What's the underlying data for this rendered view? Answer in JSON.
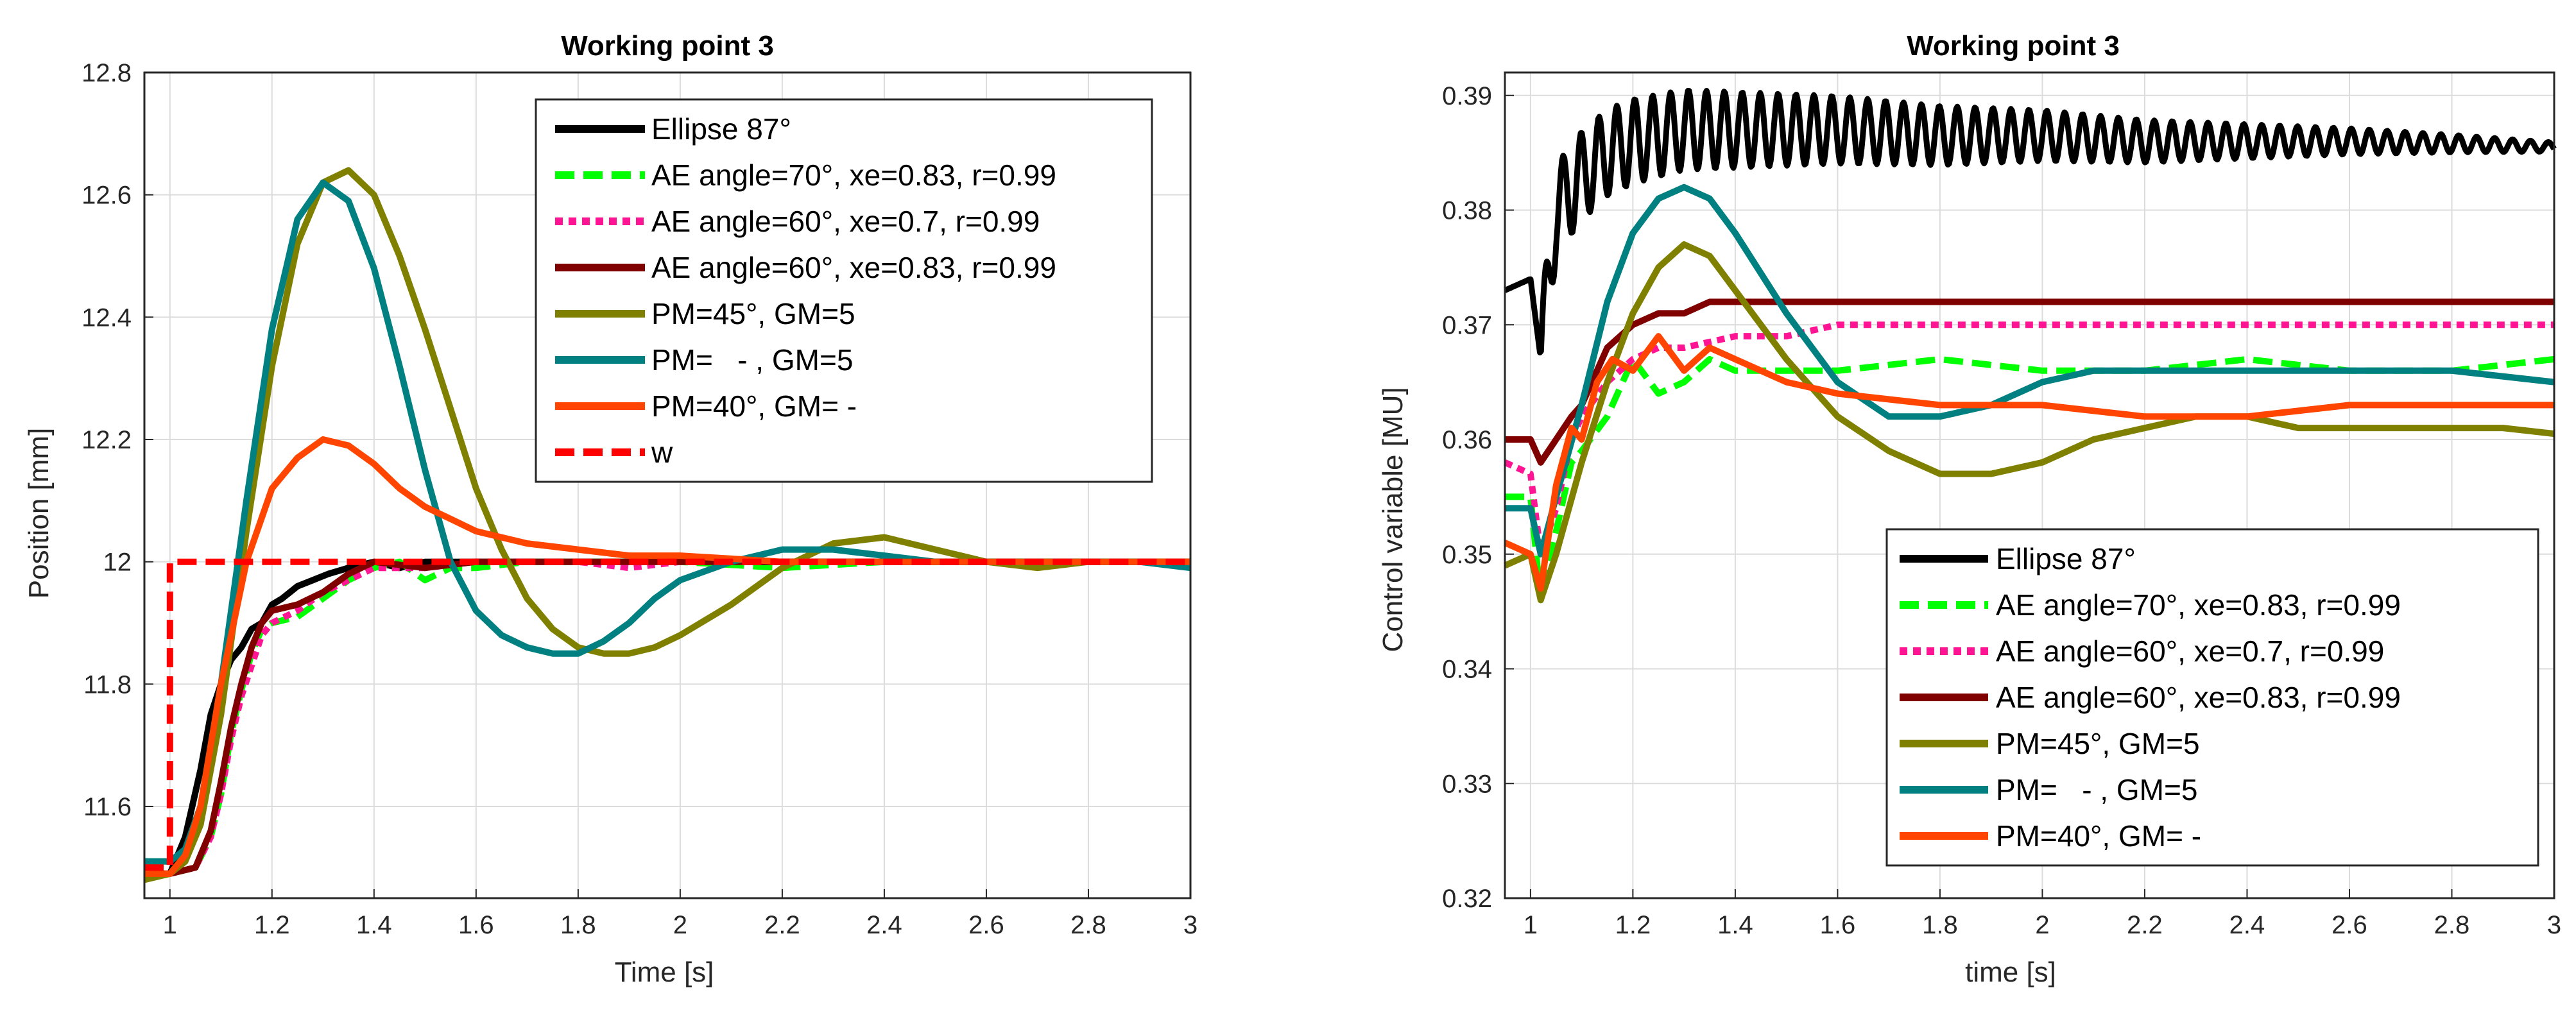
{
  "colors": {
    "ellipse": "#000000",
    "ae70": "#00ff00",
    "ae60_07": "#ff1493",
    "ae60_083": "#800000",
    "pm45": "#808000",
    "pmgm5": "#008080",
    "pm40": "#ff4500",
    "w": "#ff0000",
    "grid": "#dcdcdc",
    "axis": "#262626"
  },
  "chart_data": [
    {
      "type": "line",
      "title": "Working point 3",
      "xlabel": "Time [s]",
      "ylabel": "Position [mm]",
      "xlim": [
        0.95,
        3
      ],
      "ylim": [
        11.45,
        12.8
      ],
      "xticks": [
        1,
        1.2,
        1.4,
        1.6,
        1.8,
        2,
        2.2,
        2.4,
        2.6,
        2.8,
        3
      ],
      "xtick_labels": [
        "1",
        "1.2",
        "1.4",
        "1.6",
        "1.8",
        "2",
        "2.2",
        "2.4",
        "2.6",
        "2.8",
        "3"
      ],
      "yticks": [
        11.6,
        11.8,
        12,
        12.2,
        12.4,
        12.6,
        12.8
      ],
      "ytick_labels": [
        "11.6",
        "11.8",
        "12",
        "12.2",
        "12.4",
        "12.6",
        "12.8"
      ],
      "grid": true,
      "legend_location": "top-right",
      "series": [
        {
          "name": "Ellipse 87°",
          "color": "ellipse",
          "style": "solid",
          "x": [
            0.95,
            1.0,
            1.03,
            1.06,
            1.08,
            1.1,
            1.12,
            1.14,
            1.16,
            1.18,
            1.2,
            1.22,
            1.25,
            1.28,
            1.31,
            1.35,
            1.4,
            1.45,
            1.5,
            1.6,
            1.7,
            1.8,
            2.0,
            2.2,
            2.4,
            2.6,
            2.8,
            3.0
          ],
          "y": [
            11.49,
            11.49,
            11.55,
            11.66,
            11.75,
            11.8,
            11.84,
            11.86,
            11.89,
            11.9,
            11.93,
            11.94,
            11.96,
            11.97,
            11.98,
            11.99,
            12.0,
            11.99,
            12.0,
            12.0,
            12.0,
            12.0,
            12.0,
            12.0,
            12.0,
            12.0,
            12.0,
            12.0
          ]
        },
        {
          "name": "AE angle=70°, xe=0.83, r=0.99",
          "color": "ae70",
          "style": "dashed",
          "x": [
            0.95,
            1.0,
            1.05,
            1.08,
            1.1,
            1.12,
            1.14,
            1.16,
            1.18,
            1.2,
            1.25,
            1.3,
            1.35,
            1.4,
            1.45,
            1.5,
            1.55,
            1.6,
            1.7,
            1.8,
            1.9,
            2.0,
            2.2,
            2.4,
            2.6,
            2.8,
            3.0
          ],
          "y": [
            11.49,
            11.49,
            11.5,
            11.55,
            11.62,
            11.72,
            11.79,
            11.85,
            11.89,
            11.9,
            11.91,
            11.94,
            11.97,
            11.99,
            12.0,
            11.97,
            11.99,
            11.99,
            12.0,
            12.0,
            12.0,
            12.0,
            11.99,
            12.0,
            12.0,
            12.0,
            12.0
          ]
        },
        {
          "name": "AE angle=60°, xe=0.7, r=0.99",
          "color": "ae60_07",
          "style": "dotted",
          "x": [
            0.95,
            1.0,
            1.05,
            1.08,
            1.1,
            1.12,
            1.14,
            1.16,
            1.18,
            1.2,
            1.25,
            1.3,
            1.35,
            1.4,
            1.5,
            1.6,
            1.7,
            1.8,
            1.9,
            2.0,
            2.2,
            2.4,
            2.6,
            2.8,
            3.0
          ],
          "y": [
            11.49,
            11.49,
            11.5,
            11.55,
            11.62,
            11.71,
            11.78,
            11.83,
            11.88,
            11.9,
            11.92,
            11.95,
            11.97,
            11.99,
            11.99,
            12.0,
            12.0,
            12.0,
            11.99,
            12.0,
            12.0,
            12.0,
            12.0,
            12.0,
            12.0
          ]
        },
        {
          "name": "AE angle=60°, xe=0.83, r=0.99",
          "color": "ae60_083",
          "style": "solid",
          "x": [
            0.95,
            1.0,
            1.05,
            1.08,
            1.1,
            1.12,
            1.14,
            1.16,
            1.18,
            1.2,
            1.25,
            1.3,
            1.35,
            1.4,
            1.5,
            1.6,
            1.7,
            1.8,
            2.0,
            2.2,
            2.4,
            2.6,
            2.8,
            3.0
          ],
          "y": [
            11.49,
            11.49,
            11.5,
            11.56,
            11.64,
            11.73,
            11.8,
            11.86,
            11.9,
            11.92,
            11.93,
            11.95,
            11.98,
            12.0,
            11.99,
            12.0,
            12.0,
            12.0,
            12.0,
            12.0,
            12.0,
            12.0,
            12.0,
            12.0
          ]
        },
        {
          "name": "PM=45°, GM=5",
          "color": "pm45",
          "style": "solid",
          "x": [
            0.95,
            1.0,
            1.03,
            1.06,
            1.1,
            1.15,
            1.2,
            1.25,
            1.3,
            1.35,
            1.4,
            1.45,
            1.5,
            1.55,
            1.6,
            1.65,
            1.7,
            1.75,
            1.8,
            1.85,
            1.9,
            1.95,
            2.0,
            2.1,
            2.2,
            2.3,
            2.4,
            2.5,
            2.6,
            2.7,
            2.8,
            2.9,
            3.0
          ],
          "y": [
            11.48,
            11.49,
            11.51,
            11.57,
            11.75,
            12.05,
            12.32,
            12.52,
            12.62,
            12.64,
            12.6,
            12.5,
            12.38,
            12.25,
            12.12,
            12.02,
            11.94,
            11.89,
            11.86,
            11.85,
            11.85,
            11.86,
            11.88,
            11.93,
            11.99,
            12.03,
            12.04,
            12.02,
            12.0,
            11.99,
            12.0,
            12.0,
            12.0
          ]
        },
        {
          "name": "PM=   - , GM=5",
          "color": "pmgm5",
          "style": "solid",
          "x": [
            0.95,
            1.0,
            1.03,
            1.06,
            1.1,
            1.15,
            1.2,
            1.25,
            1.3,
            1.35,
            1.4,
            1.45,
            1.5,
            1.55,
            1.6,
            1.65,
            1.7,
            1.75,
            1.8,
            1.85,
            1.9,
            1.95,
            2.0,
            2.1,
            2.2,
            2.3,
            2.4,
            2.5,
            2.6,
            2.7,
            2.8,
            2.9,
            3.0
          ],
          "y": [
            11.51,
            11.51,
            11.53,
            11.6,
            11.8,
            12.1,
            12.38,
            12.56,
            12.62,
            12.59,
            12.48,
            12.32,
            12.15,
            12.0,
            11.92,
            11.88,
            11.86,
            11.85,
            11.85,
            11.87,
            11.9,
            11.94,
            11.97,
            12.0,
            12.02,
            12.02,
            12.01,
            12.0,
            12.0,
            12.0,
            12.0,
            12.0,
            11.99
          ]
        },
        {
          "name": "PM=40°, GM= -",
          "color": "pm40",
          "style": "solid",
          "x": [
            0.95,
            1.0,
            1.03,
            1.06,
            1.1,
            1.15,
            1.2,
            1.25,
            1.3,
            1.35,
            1.4,
            1.45,
            1.5,
            1.55,
            1.6,
            1.7,
            1.8,
            1.9,
            2.0,
            2.2,
            2.4,
            2.6,
            2.8,
            3.0
          ],
          "y": [
            11.49,
            11.49,
            11.52,
            11.6,
            11.8,
            12.0,
            12.12,
            12.17,
            12.2,
            12.19,
            12.16,
            12.12,
            12.09,
            12.07,
            12.05,
            12.03,
            12.02,
            12.01,
            12.01,
            12.0,
            12.0,
            12.0,
            12.0,
            12.0
          ]
        },
        {
          "name": "w",
          "color": "w",
          "style": "dashed",
          "x": [
            0.95,
            1.0,
            1.0,
            3.0
          ],
          "y": [
            11.5,
            11.5,
            12.0,
            12.0
          ]
        }
      ]
    },
    {
      "type": "line",
      "title": "Working point 3",
      "xlabel": "time [s]",
      "ylabel": "Control variable [MU]",
      "xlim": [
        0.95,
        3
      ],
      "ylim": [
        0.32,
        0.392
      ],
      "xticks": [
        1,
        1.2,
        1.4,
        1.6,
        1.8,
        2,
        2.2,
        2.4,
        2.6,
        2.8,
        3
      ],
      "xtick_labels": [
        "1",
        "1.2",
        "1.4",
        "1.6",
        "1.8",
        "2",
        "2.2",
        "2.4",
        "2.6",
        "2.8",
        "3"
      ],
      "yticks": [
        0.32,
        0.33,
        0.34,
        0.35,
        0.36,
        0.37,
        0.38,
        0.39
      ],
      "ytick_labels": [
        "0.32",
        "0.33",
        "0.34",
        "0.35",
        "0.36",
        "0.37",
        "0.38",
        "0.39"
      ],
      "grid": true,
      "legend_location": "bottom-right",
      "series": [
        {
          "name": "Ellipse 87°",
          "color": "ellipse",
          "style": "solid",
          "oscillation": {
            "start": 1.02,
            "period": 0.035,
            "amp_start": 0.004,
            "amp_end": 0.0004
          },
          "x": [
            0.95,
            1.0,
            1.02,
            1.05,
            1.1,
            1.15,
            1.2,
            1.3,
            1.4,
            1.5,
            1.6,
            1.8,
            2.0,
            2.2,
            2.4,
            2.6,
            2.8,
            3.0
          ],
          "y": [
            0.373,
            0.374,
            0.367,
            0.38,
            0.383,
            0.385,
            0.386,
            0.387,
            0.387,
            0.387,
            0.387,
            0.3865,
            0.3865,
            0.386,
            0.386,
            0.386,
            0.3858,
            0.3855
          ]
        },
        {
          "name": "AE angle=70°, xe=0.83, r=0.99",
          "color": "ae70",
          "style": "dashed",
          "x": [
            0.95,
            1.0,
            1.02,
            1.05,
            1.08,
            1.1,
            1.15,
            1.2,
            1.25,
            1.3,
            1.35,
            1.4,
            1.5,
            1.6,
            1.8,
            2.0,
            2.2,
            2.4,
            2.6,
            2.8,
            3.0
          ],
          "y": [
            0.355,
            0.355,
            0.346,
            0.352,
            0.358,
            0.359,
            0.362,
            0.367,
            0.364,
            0.365,
            0.367,
            0.366,
            0.366,
            0.366,
            0.367,
            0.366,
            0.366,
            0.367,
            0.366,
            0.366,
            0.367
          ]
        },
        {
          "name": "AE angle=60°, xe=0.7, r=0.99",
          "color": "ae60_07",
          "style": "dotted",
          "x": [
            0.95,
            1.0,
            1.02,
            1.05,
            1.08,
            1.1,
            1.15,
            1.2,
            1.25,
            1.3,
            1.4,
            1.5,
            1.6,
            1.8,
            2.0,
            2.2,
            2.4,
            2.6,
            2.8,
            3.0
          ],
          "y": [
            0.358,
            0.357,
            0.35,
            0.354,
            0.36,
            0.362,
            0.365,
            0.367,
            0.368,
            0.368,
            0.369,
            0.369,
            0.37,
            0.37,
            0.37,
            0.37,
            0.37,
            0.37,
            0.37,
            0.37
          ]
        },
        {
          "name": "AE angle=60°, xe=0.83, r=0.99",
          "color": "ae60_083",
          "style": "solid",
          "x": [
            0.95,
            1.0,
            1.02,
            1.05,
            1.08,
            1.1,
            1.15,
            1.2,
            1.25,
            1.3,
            1.35,
            1.4,
            1.5,
            1.6,
            1.8,
            2.0,
            2.2,
            2.4,
            2.6,
            2.8,
            3.0
          ],
          "y": [
            0.36,
            0.36,
            0.358,
            0.36,
            0.362,
            0.363,
            0.368,
            0.37,
            0.371,
            0.371,
            0.372,
            0.372,
            0.372,
            0.372,
            0.372,
            0.372,
            0.372,
            0.372,
            0.372,
            0.372,
            0.372
          ]
        },
        {
          "name": "PM=45°, GM=5",
          "color": "pm45",
          "style": "solid",
          "x": [
            0.95,
            1.0,
            1.02,
            1.05,
            1.1,
            1.15,
            1.2,
            1.25,
            1.3,
            1.35,
            1.4,
            1.5,
            1.6,
            1.7,
            1.8,
            1.9,
            2.0,
            2.1,
            2.2,
            2.3,
            2.4,
            2.5,
            2.6,
            2.7,
            2.8,
            2.9,
            3.0
          ],
          "y": [
            0.349,
            0.35,
            0.346,
            0.35,
            0.358,
            0.365,
            0.371,
            0.375,
            0.377,
            0.376,
            0.373,
            0.367,
            0.362,
            0.359,
            0.357,
            0.357,
            0.358,
            0.36,
            0.361,
            0.362,
            0.362,
            0.361,
            0.361,
            0.361,
            0.361,
            0.361,
            0.3605
          ]
        },
        {
          "name": "PM=   - , GM=5",
          "color": "pmgm5",
          "style": "solid",
          "x": [
            0.95,
            1.0,
            1.02,
            1.05,
            1.1,
            1.15,
            1.2,
            1.25,
            1.3,
            1.35,
            1.4,
            1.5,
            1.6,
            1.7,
            1.8,
            1.9,
            2.0,
            2.1,
            2.2,
            2.3,
            2.4,
            2.6,
            2.8,
            3.0
          ],
          "y": [
            0.354,
            0.354,
            0.35,
            0.355,
            0.363,
            0.372,
            0.378,
            0.381,
            0.382,
            0.381,
            0.378,
            0.371,
            0.365,
            0.362,
            0.362,
            0.363,
            0.365,
            0.366,
            0.366,
            0.366,
            0.366,
            0.366,
            0.366,
            0.365
          ]
        },
        {
          "name": "PM=40°, GM= -",
          "color": "pm40",
          "style": "solid",
          "x": [
            0.95,
            1.0,
            1.02,
            1.05,
            1.08,
            1.1,
            1.13,
            1.16,
            1.2,
            1.25,
            1.3,
            1.35,
            1.4,
            1.5,
            1.6,
            1.8,
            2.0,
            2.2,
            2.4,
            2.6,
            2.8,
            3.0
          ],
          "y": [
            0.351,
            0.35,
            0.347,
            0.356,
            0.361,
            0.36,
            0.365,
            0.367,
            0.366,
            0.369,
            0.366,
            0.368,
            0.367,
            0.365,
            0.364,
            0.363,
            0.363,
            0.362,
            0.362,
            0.363,
            0.363,
            0.363
          ]
        }
      ]
    }
  ]
}
